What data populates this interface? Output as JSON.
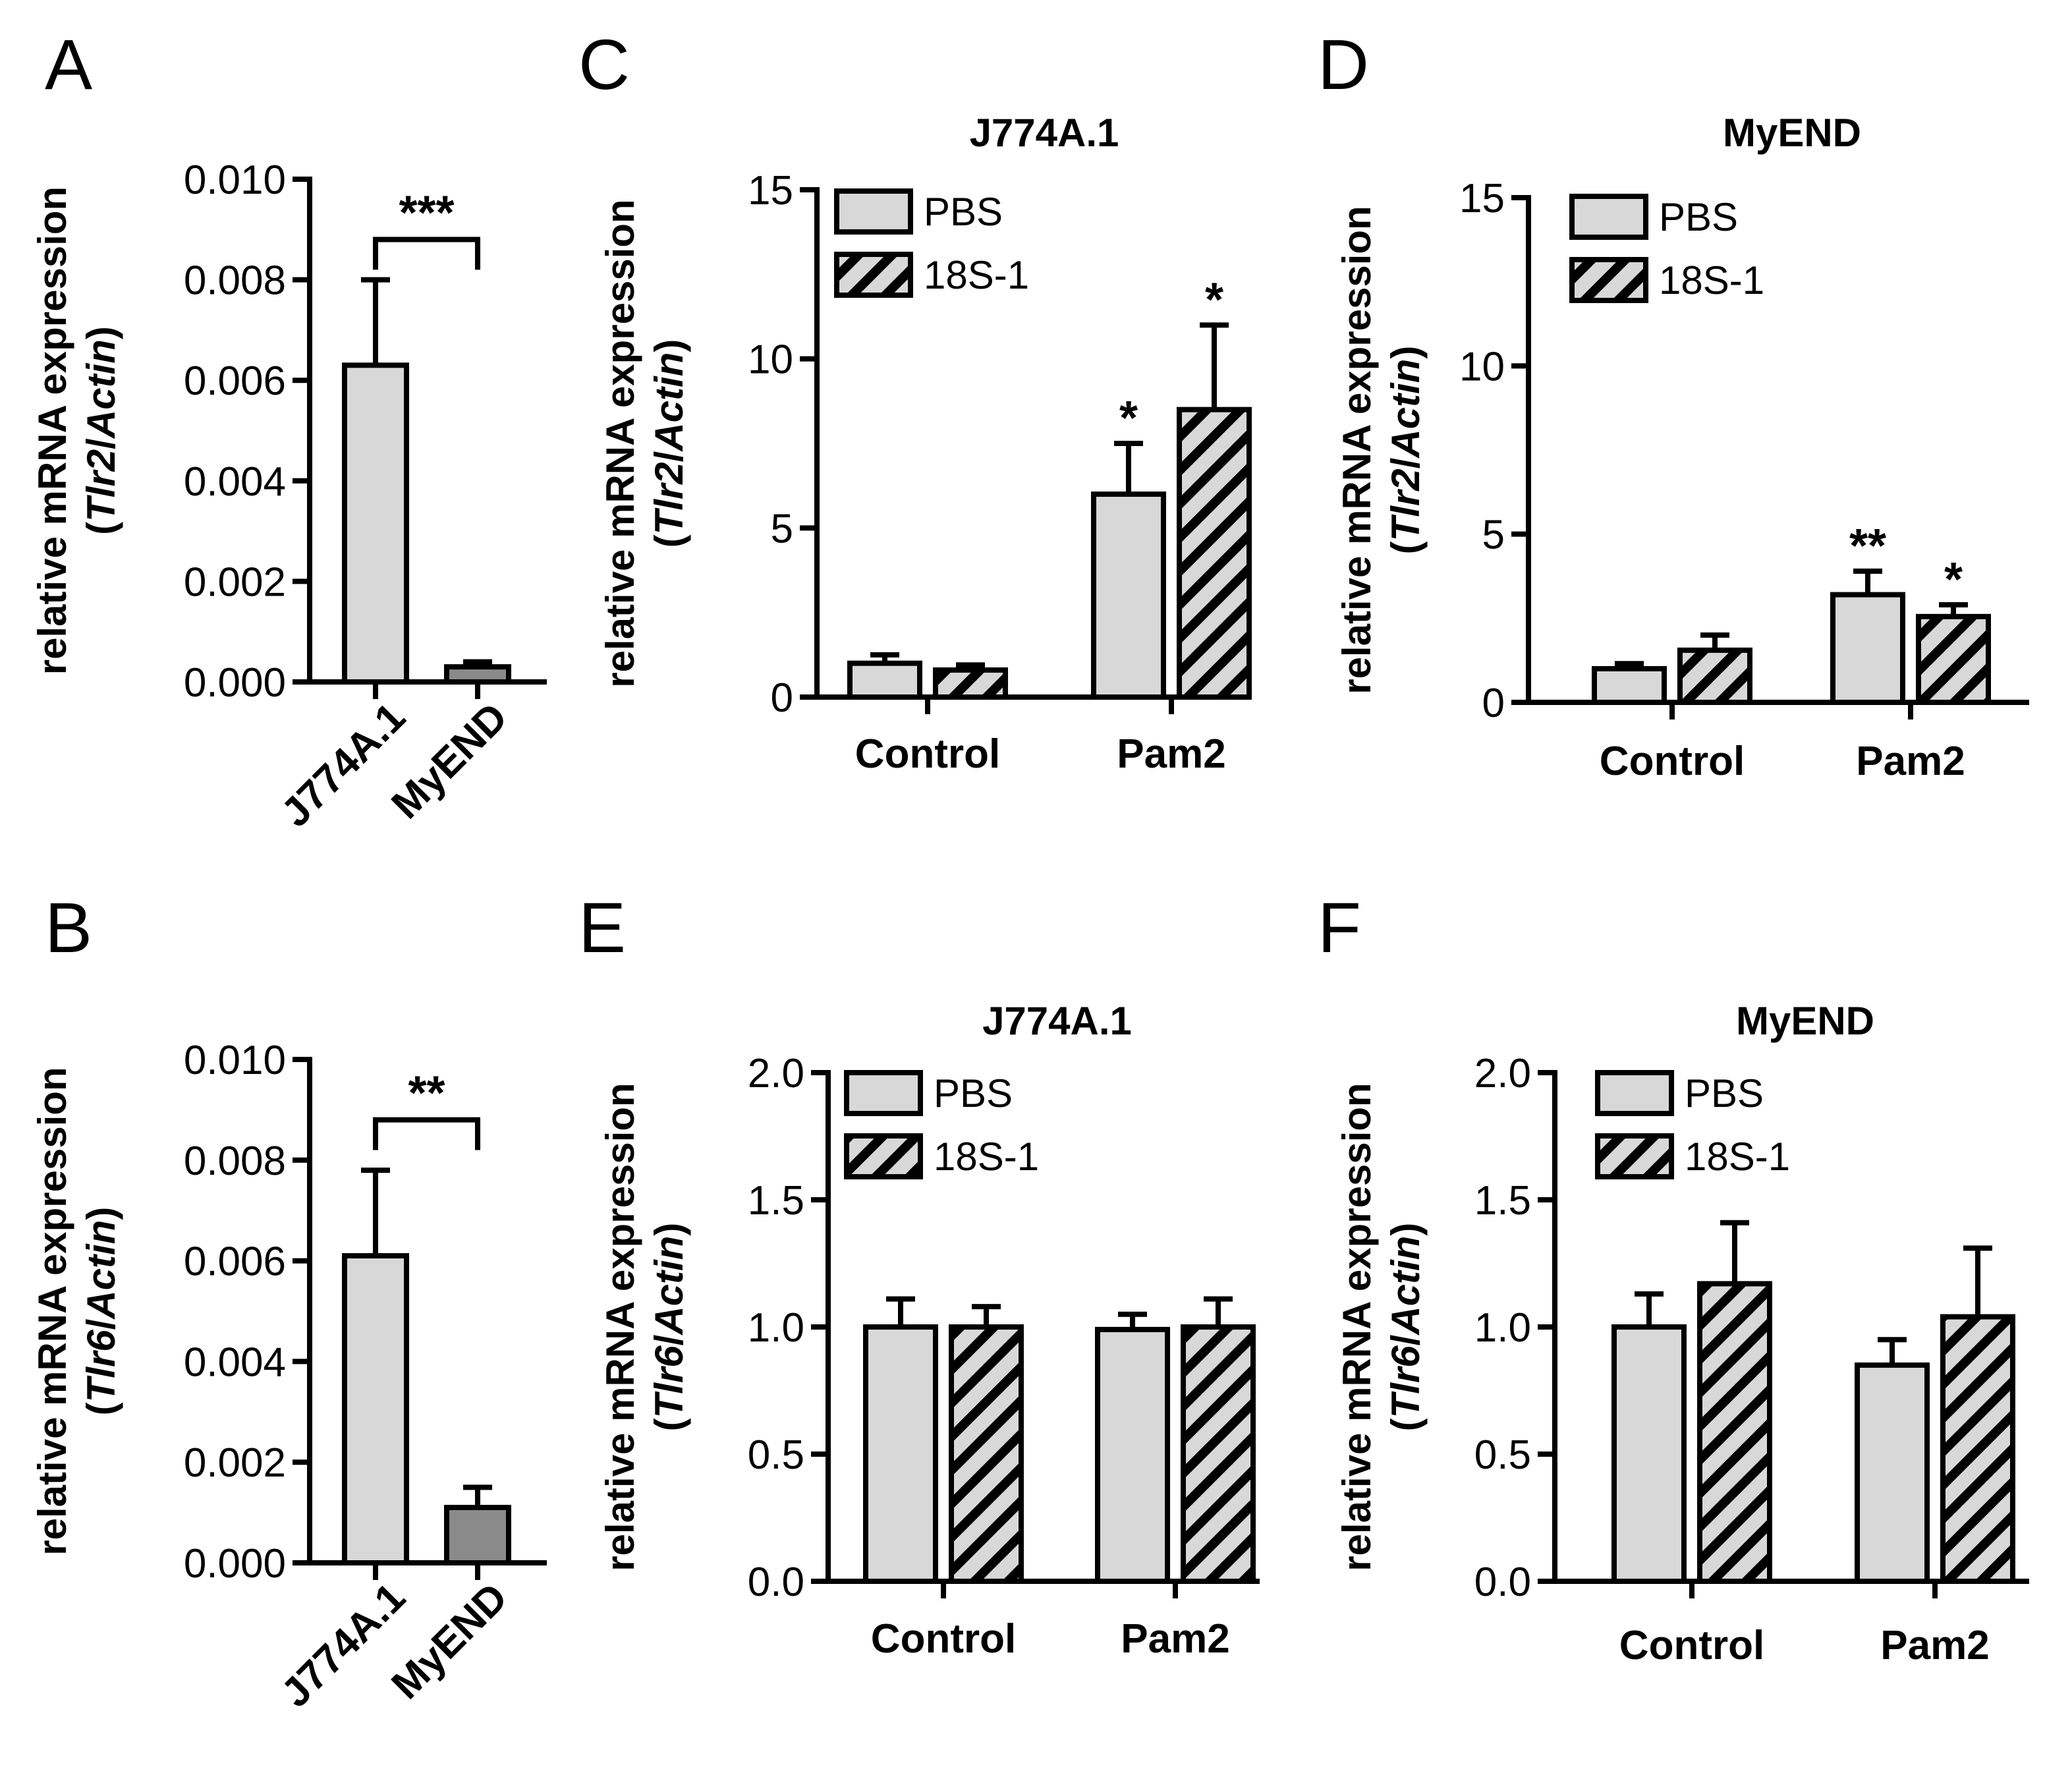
{
  "colors": {
    "pbs": "#d8d8d8",
    "myend_bar": "#8a8a8a",
    "hatch": "#000000",
    "stroke": "#000000"
  },
  "chart_data": [
    {
      "panel": "A",
      "type": "bar",
      "title": "",
      "ylabel": "relative mRNA expression",
      "ylabel_gene": "Tlr2",
      "ylabel_ref": "Actin",
      "categories": [
        "J774A.1",
        "MyEND"
      ],
      "values": [
        0.0063,
        0.0003
      ],
      "errors": [
        0.0017,
        0.0001
      ],
      "bar_fill": [
        "pbs",
        "myend_bar"
      ],
      "ylim": [
        0,
        0.01
      ],
      "yticks": [
        "0.000",
        "0.002",
        "0.004",
        "0.006",
        "0.008",
        "0.010"
      ],
      "significance": "***"
    },
    {
      "panel": "B",
      "type": "bar",
      "title": "",
      "ylabel": "relative mRNA expression",
      "ylabel_gene": "Tlr6",
      "ylabel_ref": "Actin",
      "categories": [
        "J774A.1",
        "MyEND"
      ],
      "values": [
        0.0061,
        0.0011
      ],
      "errors": [
        0.0017,
        0.0004
      ],
      "bar_fill": [
        "pbs",
        "myend_bar"
      ],
      "ylim": [
        0,
        0.01
      ],
      "yticks": [
        "0.000",
        "0.002",
        "0.004",
        "0.006",
        "0.008",
        "0.010"
      ],
      "significance": "**"
    },
    {
      "panel": "C",
      "type": "bar",
      "title": "J774A.1",
      "ylabel": "relative mRNA expression",
      "ylabel_gene": "Tlr2",
      "ylabel_ref": "Actin",
      "categories": [
        "Control",
        "Pam2"
      ],
      "series": [
        {
          "name": "PBS",
          "values": [
            1.0,
            6.0
          ],
          "errors": [
            0.25,
            1.5
          ],
          "stars": [
            "",
            "*"
          ]
        },
        {
          "name": "18S-1",
          "values": [
            0.8,
            8.5
          ],
          "errors": [
            0.15,
            2.5
          ],
          "stars": [
            "",
            "*"
          ]
        }
      ],
      "ylim": [
        0,
        15
      ],
      "yticks": [
        "0",
        "5",
        "10",
        "15"
      ]
    },
    {
      "panel": "D",
      "type": "bar",
      "title": "MyEND",
      "ylabel": "relative mRNA expression",
      "ylabel_gene": "Tlr2",
      "ylabel_ref": "Actin",
      "categories": [
        "Control",
        "Pam2"
      ],
      "series": [
        {
          "name": "PBS",
          "values": [
            1.0,
            3.2
          ],
          "errors": [
            0.15,
            0.7
          ],
          "stars": [
            "",
            "**"
          ]
        },
        {
          "name": "18S-1",
          "values": [
            1.55,
            2.55
          ],
          "errors": [
            0.45,
            0.35
          ],
          "stars": [
            "",
            "*"
          ]
        }
      ],
      "ylim": [
        0,
        15
      ],
      "yticks": [
        "0",
        "5",
        "10",
        "15"
      ]
    },
    {
      "panel": "E",
      "type": "bar",
      "title": "J774A.1",
      "ylabel": "relative mRNA expression",
      "ylabel_gene": "Tlr6",
      "ylabel_ref": "Actin",
      "categories": [
        "Control",
        "Pam2"
      ],
      "series": [
        {
          "name": "PBS",
          "values": [
            1.0,
            0.99
          ],
          "errors": [
            0.11,
            0.06
          ],
          "stars": [
            "",
            ""
          ]
        },
        {
          "name": "18S-1",
          "values": [
            1.0,
            1.0
          ],
          "errors": [
            0.08,
            0.11
          ],
          "stars": [
            "",
            ""
          ]
        }
      ],
      "ylim": [
        0,
        2.0
      ],
      "yticks": [
        "0.0",
        "0.5",
        "1.0",
        "1.5",
        "2.0"
      ]
    },
    {
      "panel": "F",
      "type": "bar",
      "title": "MyEND",
      "ylabel": "relative mRNA expression",
      "ylabel_gene": "Tlr6",
      "ylabel_ref": "Actin",
      "categories": [
        "Control",
        "Pam2"
      ],
      "series": [
        {
          "name": "PBS",
          "values": [
            1.0,
            0.85
          ],
          "errors": [
            0.13,
            0.1
          ],
          "stars": [
            "",
            ""
          ]
        },
        {
          "name": "18S-1",
          "values": [
            1.17,
            1.04
          ],
          "errors": [
            0.24,
            0.27
          ],
          "stars": [
            "",
            ""
          ]
        }
      ],
      "ylim": [
        0,
        2.0
      ],
      "yticks": [
        "0.0",
        "0.5",
        "1.0",
        "1.5",
        "2.0"
      ]
    }
  ]
}
